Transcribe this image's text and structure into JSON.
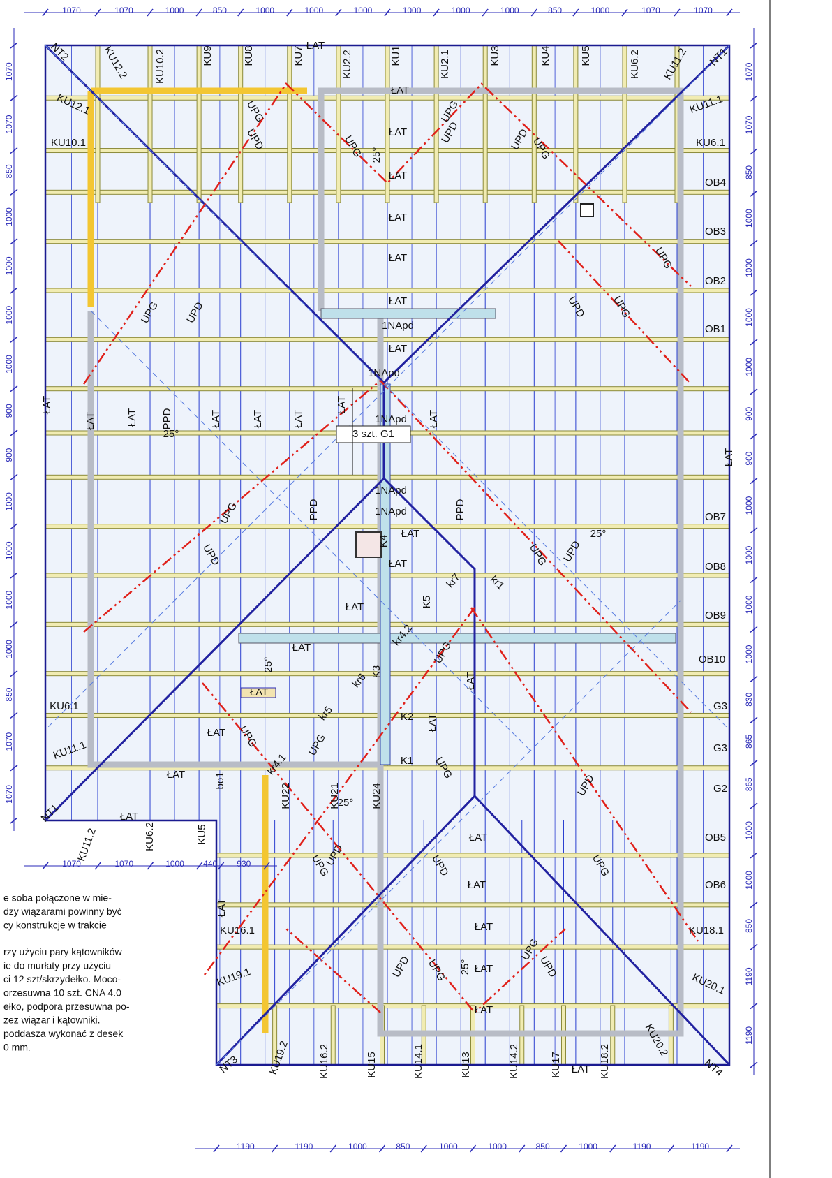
{
  "dimensions": {
    "top": [
      1070,
      1070,
      1000,
      850,
      1000,
      1000,
      1000,
      1000,
      1000,
      1000,
      850,
      1000,
      1070,
      1070
    ],
    "left": [
      1070,
      1070,
      850,
      1000,
      1000,
      1000,
      1000,
      900,
      900,
      1000,
      1000,
      1000,
      1000,
      850,
      1070,
      1070
    ],
    "right": [
      1070,
      1070,
      850,
      1000,
      1000,
      1000,
      1000,
      900,
      900,
      1000,
      1000,
      1000,
      1000,
      830,
      865,
      865,
      1000,
      1000,
      850,
      1190,
      1190
    ],
    "bottom_left": [
      1070,
      1070,
      1000,
      440,
      930
    ],
    "bottom_right": [
      1190,
      1190,
      1000,
      850,
      1000,
      1000,
      850,
      1000,
      1190,
      1190
    ]
  },
  "labels": [
    "NT2",
    "KU12.2",
    "KU10.2",
    "KU9",
    "KU8",
    "KU7",
    "ŁAT",
    "KU2.2",
    "KU1",
    "KU2.1",
    "KU3",
    "KU4",
    "KU5",
    "KU6.2",
    "KU11.2",
    "NT1",
    "KU12.1",
    "KU10.1",
    "KU11.1",
    "KU6.1",
    "OB4",
    "OB3",
    "OB2",
    "OB1",
    "OB7",
    "OB8",
    "OB9",
    "OB10",
    "G3",
    "G3",
    "G2",
    "OB5",
    "OB6",
    "KU18.1",
    "KU20.1",
    "NT4",
    "KU6.1",
    "KU11.1",
    "NT1",
    "KU11.2",
    "KU6.2",
    "KU5",
    "NT3",
    "KU19.2",
    "KU16.2",
    "KU15",
    "KU14.1",
    "KU13",
    "KU14.2",
    "KU17",
    "KU18.2",
    "KU20.2",
    "KU16.1",
    "KU19.1",
    "1NApd",
    "1NApd",
    "1NApd",
    "1NApd",
    "1NApd",
    "3 szt. G1",
    "K1",
    "K2",
    "K3",
    "K4",
    "K5",
    "kr1",
    "kr7",
    "kr4.2",
    "kr6",
    "kr5",
    "kr4.1",
    "KU22",
    "KU21",
    "KU24",
    "bo1",
    "25°",
    "25°",
    "25°",
    "25°",
    "25°",
    "25°",
    "ŁAT",
    "ŁAT",
    "ŁAT",
    "ŁAT",
    "ŁAT",
    "ŁAT",
    "ŁAT",
    "ŁAT",
    "ŁAT",
    "ŁAT",
    "ŁAT",
    "ŁAT",
    "ŁAT",
    "ŁAT",
    "ŁAT",
    "ŁAT",
    "ŁAT",
    "ŁAT",
    "ŁAT",
    "ŁAT",
    "ŁAT",
    "ŁAT",
    "ŁAT",
    "ŁAT",
    "ŁAT",
    "ŁAT",
    "ŁAT",
    "ŁAT",
    "ŁAT",
    "ŁAT",
    "ŁAT",
    "ŁAT",
    "ŁAT",
    "UPG",
    "UPD",
    "UPG",
    "UPG",
    "UPD",
    "UPD",
    "UPG",
    "UPG",
    "UPD",
    "UPG",
    "UPG",
    "UPD",
    "UPG",
    "UPD",
    "PPD",
    "PPD",
    "PPD",
    "UPG",
    "UPD",
    "UPG",
    "UPG",
    "UPG",
    "UPG",
    "UPD",
    "UPD",
    "UPG",
    "UPD",
    "UPG",
    "UPD",
    "UPG",
    "UPG",
    "UPD"
  ],
  "notes": [
    "e soba połączone w mie-",
    "dzy wiązarami powinny być",
    "cy konstrukcje w trakcie",
    "rzy użyciu pary kątowników",
    "ie do murłaty przy użyciu",
    "ci 12 szt/skrzydełko. Moco-",
    "orzesuwna 10 szt. CNA 4.0",
    "ełko, podpora przesuwna po-",
    "zez wiązar i kątowniki.",
    "poddasza wykonać z desek",
    "0 mm."
  ]
}
